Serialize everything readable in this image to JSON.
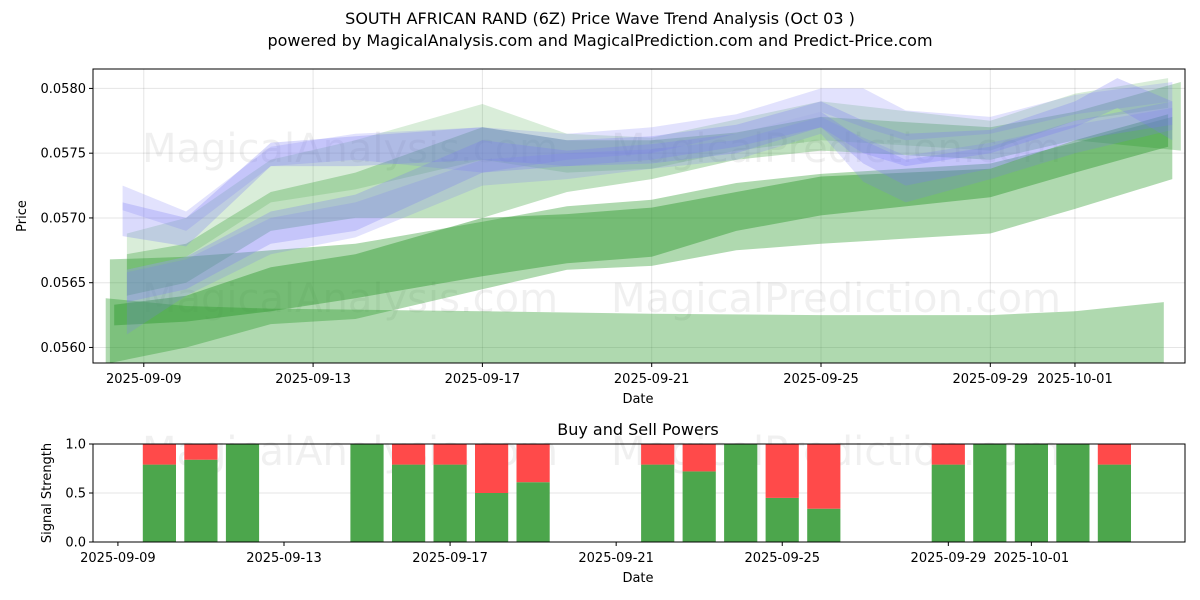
{
  "header": {
    "title": "SOUTH AFRICAN RAND (6Z) Price Wave Trend Analysis (Oct 03 )",
    "subtitle": "powered by MagicalAnalysis.com and MagicalPrediction.com and Predict-Price.com"
  },
  "watermarks": [
    "MagicalAnalysis.com",
    "MagicalPrediction.com"
  ],
  "colors": {
    "green_band": "#2e9a2e",
    "blue_band": "#7b7bf5",
    "buy": "#4ca64c",
    "sell": "#ff4a4a"
  },
  "chart_data": [
    {
      "type": "area",
      "title": "",
      "xlabel": "Date",
      "ylabel": "Price",
      "ylim": [
        0.05588,
        0.05815
      ],
      "yticks": [
        "0.0560",
        "0.0565",
        "0.0570",
        "0.0575",
        "0.0580"
      ],
      "ytick_values": [
        0.056,
        0.0565,
        0.057,
        0.0575,
        0.058
      ],
      "xticks": [
        "2025-09-09",
        "2025-09-13",
        "2025-09-17",
        "2025-09-21",
        "2025-09-25",
        "2025-09-29",
        "2025-10-01"
      ],
      "xtick_days": [
        0,
        4,
        8,
        12,
        16,
        20,
        22
      ],
      "x_start": "2025-09-09",
      "xlim_days": [
        -1.2,
        24.6
      ],
      "grid": true,
      "series": [
        {
          "name": "green-band-low-wide",
          "color": "green",
          "alpha": 0.38,
          "x": [
            -0.9,
            1,
            3,
            8,
            12,
            16,
            20,
            22,
            24.1
          ],
          "upper": [
            0.05638,
            0.05632,
            0.0563,
            0.05628,
            0.05626,
            0.05625,
            0.05625,
            0.05628,
            0.05635
          ],
          "lower": [
            0.05585,
            0.05585,
            0.05585,
            0.05585,
            0.05585,
            0.05585,
            0.05585,
            0.05585,
            0.05585
          ]
        },
        {
          "name": "green-band-rising-wide",
          "color": "green",
          "alpha": 0.38,
          "x": [
            -0.8,
            1,
            3,
            5,
            8,
            10,
            12,
            14,
            16,
            20,
            22,
            24.3
          ],
          "upper": [
            0.05668,
            0.0567,
            0.05675,
            0.0568,
            0.05697,
            0.05709,
            0.05714,
            0.05727,
            0.05734,
            0.05742,
            0.05758,
            0.05778
          ],
          "lower": [
            0.05588,
            0.056,
            0.05618,
            0.05622,
            0.05645,
            0.0566,
            0.05663,
            0.05675,
            0.0568,
            0.05688,
            0.05707,
            0.0573
          ]
        },
        {
          "name": "green-band-rising-dark",
          "color": "green",
          "alpha": 0.45,
          "x": [
            -0.7,
            1,
            3,
            5,
            8,
            10,
            12,
            14,
            16,
            20,
            22,
            24.2
          ],
          "upper": [
            0.05633,
            0.0564,
            0.05662,
            0.05672,
            0.057,
            0.05703,
            0.05708,
            0.0572,
            0.05732,
            0.05738,
            0.0576,
            0.0578
          ],
          "lower": [
            0.05617,
            0.0562,
            0.05628,
            0.05638,
            0.05655,
            0.05665,
            0.0567,
            0.0569,
            0.05702,
            0.05716,
            0.05735,
            0.05755
          ]
        },
        {
          "name": "green-band-upper-light",
          "color": "green",
          "alpha": 0.3,
          "x": [
            -0.4,
            1,
            3,
            5,
            8,
            10,
            12,
            14,
            16,
            20,
            22,
            24.5
          ],
          "upper": [
            0.05672,
            0.0568,
            0.0572,
            0.05735,
            0.0577,
            0.0576,
            0.0576,
            0.05766,
            0.05778,
            0.0577,
            0.05782,
            0.05805
          ],
          "lower": [
            0.0564,
            0.0565,
            0.0569,
            0.057,
            0.057,
            0.0572,
            0.0573,
            0.05745,
            0.05752,
            0.05745,
            0.0576,
            0.05752
          ]
        },
        {
          "name": "green-band-upper-pale",
          "color": "green",
          "alpha": 0.18,
          "x": [
            -0.4,
            1,
            3,
            5,
            8,
            10,
            12,
            14,
            16,
            20,
            22,
            24.2
          ],
          "upper": [
            0.05688,
            0.057,
            0.05745,
            0.0576,
            0.05788,
            0.05765,
            0.05762,
            0.05776,
            0.0579,
            0.05775,
            0.05796,
            0.05808
          ],
          "lower": [
            0.0566,
            0.0567,
            0.05712,
            0.05722,
            0.05745,
            0.05735,
            0.05738,
            0.05752,
            0.0576,
            0.05752,
            0.05775,
            0.05785
          ]
        },
        {
          "name": "blue-band-top",
          "color": "blue",
          "alpha": 0.22,
          "x": [
            -0.5,
            1,
            3,
            5,
            8,
            10,
            12,
            14,
            16,
            17,
            18,
            20,
            22,
            24.3
          ],
          "upper": [
            0.05725,
            0.05705,
            0.05755,
            0.05765,
            0.0577,
            0.05765,
            0.0577,
            0.0578,
            0.058,
            0.058,
            0.05783,
            0.05778,
            0.05795,
            0.05805
          ],
          "lower": [
            0.05706,
            0.0569,
            0.0574,
            0.05745,
            0.05735,
            0.05745,
            0.0575,
            0.05765,
            0.05782,
            0.0577,
            0.0576,
            0.05765,
            0.0578,
            0.0579
          ]
        },
        {
          "name": "blue-band-main",
          "color": "blue",
          "alpha": 0.28,
          "x": [
            -0.5,
            1,
            3,
            5,
            8,
            10,
            12,
            14,
            16,
            17,
            18,
            20,
            22,
            23,
            24.3
          ],
          "upper": [
            0.05712,
            0.057,
            0.05758,
            0.05763,
            0.0577,
            0.0576,
            0.05763,
            0.05772,
            0.0579,
            0.05775,
            0.05765,
            0.05768,
            0.0579,
            0.05808,
            0.0579
          ],
          "lower": [
            0.05686,
            0.05678,
            0.0574,
            0.0574,
            0.05745,
            0.0574,
            0.05745,
            0.05755,
            0.0577,
            0.0575,
            0.0574,
            0.0575,
            0.0577,
            0.05785,
            0.0576
          ]
        },
        {
          "name": "blue-band-lower",
          "color": "blue",
          "alpha": 0.28,
          "x": [
            -0.4,
            1,
            3,
            5,
            8,
            10,
            12,
            14,
            16,
            17,
            18,
            20,
            22,
            24.3
          ],
          "upper": [
            0.0566,
            0.0567,
            0.05705,
            0.05718,
            0.0576,
            0.05752,
            0.05757,
            0.05765,
            0.05782,
            0.0576,
            0.05745,
            0.05755,
            0.05775,
            0.0579
          ],
          "lower": [
            0.05635,
            0.05645,
            0.0568,
            0.0569,
            0.05735,
            0.0574,
            0.05742,
            0.0575,
            0.0577,
            0.05742,
            0.05725,
            0.05738,
            0.0576,
            0.05772
          ]
        },
        {
          "name": "blue-band-rising",
          "color": "blue",
          "alpha": 0.22,
          "x": [
            -0.4,
            1,
            3,
            5,
            8,
            10,
            12,
            14,
            16,
            17,
            18,
            20,
            22,
            24.3
          ],
          "upper": [
            0.05658,
            0.05668,
            0.057,
            0.05712,
            0.05745,
            0.0575,
            0.05753,
            0.0576,
            0.05778,
            0.05762,
            0.05748,
            0.05758,
            0.05772,
            0.05785
          ],
          "lower": [
            0.0561,
            0.0564,
            0.05672,
            0.05685,
            0.05725,
            0.0573,
            0.05738,
            0.05745,
            0.05765,
            0.05728,
            0.05712,
            0.0573,
            0.0575,
            0.05768
          ]
        }
      ]
    },
    {
      "type": "bar",
      "title": "Buy and Sell Powers",
      "xlabel": "Date",
      "ylabel": "Signal Strength",
      "ylim": [
        0,
        1
      ],
      "yticks": [
        "0.0",
        "0.5",
        "1.0"
      ],
      "ytick_values": [
        0,
        0.5,
        1.0
      ],
      "xticks": [
        "2025-09-09",
        "2025-09-13",
        "2025-09-17",
        "2025-09-21",
        "2025-09-25",
        "2025-09-29",
        "2025-10-01"
      ],
      "xtick_days": [
        0,
        4,
        8,
        12,
        16,
        20,
        22
      ],
      "x_start": "2025-09-09",
      "xlim_days": [
        -0.6,
        25.7
      ],
      "grid": true,
      "categories": [
        "2025-09-10",
        "2025-09-11",
        "2025-09-12",
        "2025-09-15",
        "2025-09-16",
        "2025-09-17",
        "2025-09-18",
        "2025-09-19",
        "2025-09-22",
        "2025-09-23",
        "2025-09-24",
        "2025-09-25",
        "2025-09-26",
        "2025-09-29",
        "2025-09-30",
        "2025-10-01",
        "2025-10-02",
        "2025-10-03"
      ],
      "day_index": [
        1,
        2,
        3,
        6,
        7,
        8,
        9,
        10,
        13,
        14,
        15,
        16,
        17,
        20,
        21,
        22,
        23,
        24
      ],
      "series": [
        {
          "name": "Buy",
          "values": [
            0.79,
            0.84,
            1.0,
            1.0,
            0.79,
            0.79,
            0.5,
            0.61,
            0.79,
            0.72,
            1.0,
            0.45,
            0.34,
            0.79,
            1.0,
            1.0,
            1.0,
            0.79
          ]
        },
        {
          "name": "Sell",
          "values": [
            0.21,
            0.16,
            0.0,
            0.0,
            0.21,
            0.21,
            0.5,
            0.39,
            0.21,
            0.28,
            0.0,
            0.55,
            0.66,
            0.21,
            0.0,
            0.0,
            0.0,
            0.21
          ]
        }
      ]
    }
  ]
}
